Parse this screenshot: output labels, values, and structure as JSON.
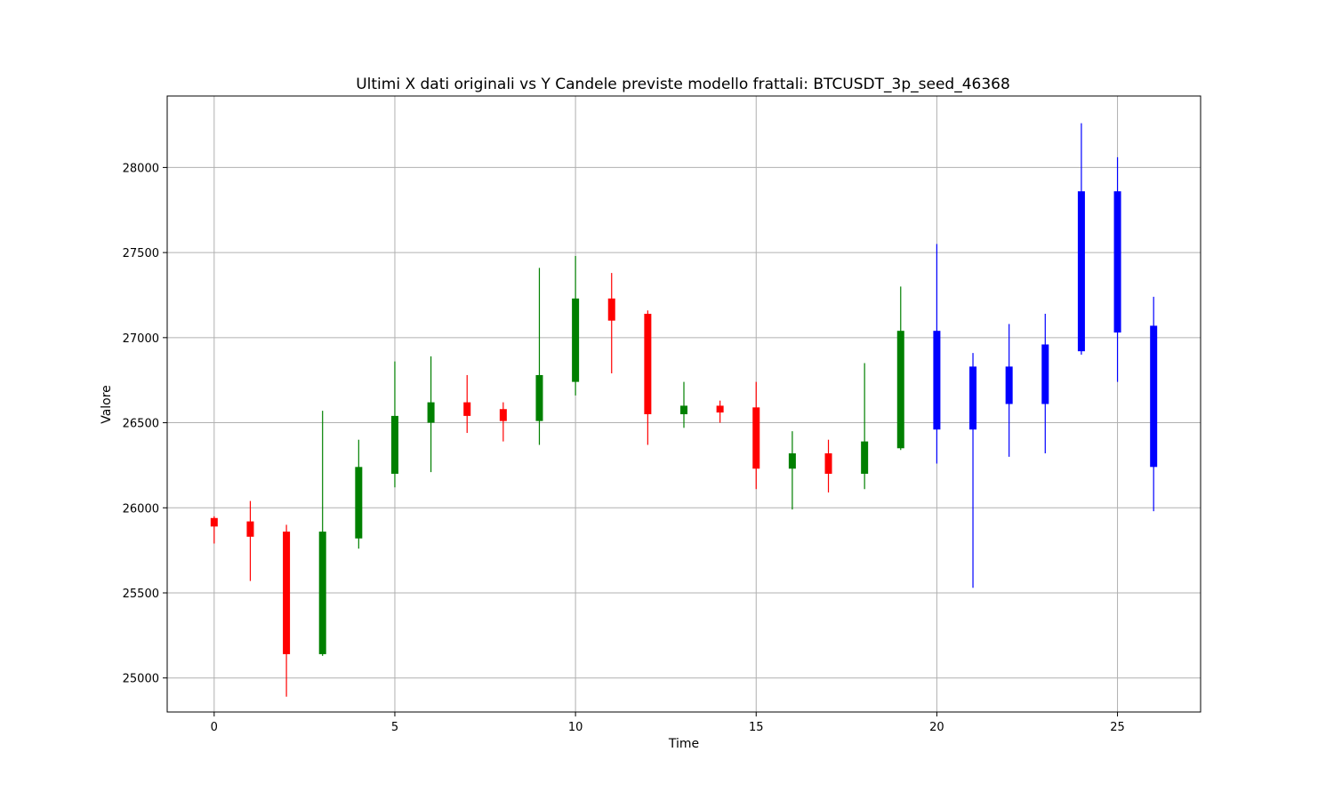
{
  "chart_data": {
    "type": "candlestick",
    "title": "Ultimi X dati originali vs Y Candele previste modello frattali: BTCUSDT_3p_seed_46368",
    "xlabel": "Time",
    "ylabel": "Valore",
    "xlim": [
      -1.3,
      27.3
    ],
    "ylim": [
      24800,
      28420
    ],
    "xticks": [
      0,
      5,
      10,
      15,
      20,
      25
    ],
    "yticks": [
      25000,
      25500,
      26000,
      26500,
      27000,
      27500,
      28000
    ],
    "grid": true,
    "colors": {
      "up": "#008000",
      "down": "#ff0000",
      "predicted": "#0000ff"
    },
    "candles": [
      {
        "t": 0,
        "open": 25940,
        "close": 25890,
        "high": 25950,
        "low": 25790,
        "kind": "down"
      },
      {
        "t": 1,
        "open": 25920,
        "close": 25830,
        "high": 26040,
        "low": 25570,
        "kind": "down"
      },
      {
        "t": 2,
        "open": 25860,
        "close": 25140,
        "high": 25900,
        "low": 24890,
        "kind": "down"
      },
      {
        "t": 3,
        "open": 25140,
        "close": 25860,
        "high": 26570,
        "low": 25130,
        "kind": "up"
      },
      {
        "t": 4,
        "open": 25820,
        "close": 26240,
        "high": 26400,
        "low": 25760,
        "kind": "up"
      },
      {
        "t": 5,
        "open": 26200,
        "close": 26540,
        "high": 26860,
        "low": 26120,
        "kind": "up"
      },
      {
        "t": 6,
        "open": 26500,
        "close": 26620,
        "high": 26890,
        "low": 26210,
        "kind": "up"
      },
      {
        "t": 7,
        "open": 26620,
        "close": 26540,
        "high": 26780,
        "low": 26440,
        "kind": "down"
      },
      {
        "t": 8,
        "open": 26580,
        "close": 26510,
        "high": 26620,
        "low": 26390,
        "kind": "down"
      },
      {
        "t": 9,
        "open": 26510,
        "close": 26780,
        "high": 27410,
        "low": 26370,
        "kind": "up"
      },
      {
        "t": 10,
        "open": 26740,
        "close": 27230,
        "high": 27480,
        "low": 26660,
        "kind": "up"
      },
      {
        "t": 11,
        "open": 27230,
        "close": 27100,
        "high": 27380,
        "low": 26790,
        "kind": "down"
      },
      {
        "t": 12,
        "open": 27140,
        "close": 26550,
        "high": 27160,
        "low": 26370,
        "kind": "down"
      },
      {
        "t": 13,
        "open": 26550,
        "close": 26600,
        "high": 26740,
        "low": 26470,
        "kind": "up"
      },
      {
        "t": 14,
        "open": 26600,
        "close": 26560,
        "high": 26630,
        "low": 26500,
        "kind": "down"
      },
      {
        "t": 15,
        "open": 26590,
        "close": 26230,
        "high": 26740,
        "low": 26110,
        "kind": "down"
      },
      {
        "t": 16,
        "open": 26230,
        "close": 26320,
        "high": 26450,
        "low": 25990,
        "kind": "up"
      },
      {
        "t": 17,
        "open": 26320,
        "close": 26200,
        "high": 26400,
        "low": 26090,
        "kind": "down"
      },
      {
        "t": 18,
        "open": 26200,
        "close": 26390,
        "high": 26850,
        "low": 26110,
        "kind": "up"
      },
      {
        "t": 19,
        "open": 26350,
        "close": 27040,
        "high": 27300,
        "low": 26340,
        "kind": "up"
      },
      {
        "t": 20,
        "open": 26460,
        "close": 27040,
        "high": 27550,
        "low": 26260,
        "kind": "predicted"
      },
      {
        "t": 21,
        "open": 26460,
        "close": 26830,
        "high": 26910,
        "low": 25530,
        "kind": "predicted"
      },
      {
        "t": 22,
        "open": 26610,
        "close": 26830,
        "high": 27080,
        "low": 26300,
        "kind": "predicted"
      },
      {
        "t": 23,
        "open": 26610,
        "close": 26960,
        "high": 27140,
        "low": 26320,
        "kind": "predicted"
      },
      {
        "t": 24,
        "open": 26920,
        "close": 27860,
        "high": 28260,
        "low": 26900,
        "kind": "predicted"
      },
      {
        "t": 25,
        "open": 27030,
        "close": 27860,
        "high": 28060,
        "low": 26740,
        "kind": "predicted"
      },
      {
        "t": 26,
        "open": 26240,
        "close": 27070,
        "high": 27240,
        "low": 25980,
        "kind": "predicted"
      }
    ]
  }
}
